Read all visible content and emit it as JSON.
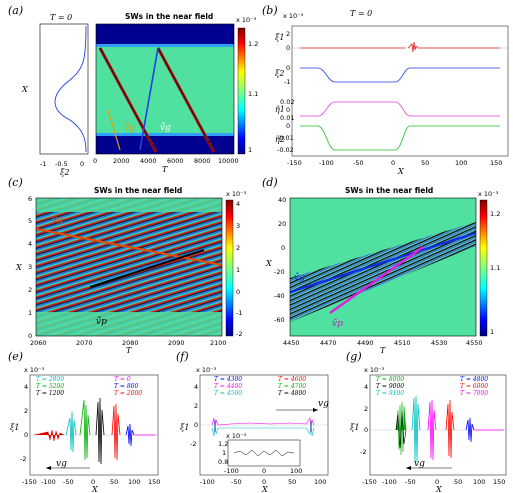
{
  "panels": {
    "a": {
      "label": "(a)",
      "title": "SWs in the near field",
      "T_label": "T = 0",
      "xlabel": "T",
      "ylabel": "X",
      "xi_label": "ξ2",
      "x_ticks": [
        "0",
        "2000",
        "4000",
        "6000",
        "8000",
        "10000"
      ],
      "y_ticks": [],
      "xi_ticks": [
        "-1",
        "-0.5",
        "0"
      ],
      "cb_exp": "x 10⁻³",
      "cb_ticks": [
        "1.2",
        "1.1",
        "1"
      ],
      "ann_vg": "ṽg",
      "ann_vg2": "ṽg"
    },
    "b": {
      "label": "(b)",
      "T_label": "T = 0",
      "exp": "x 10⁻³",
      "xlabel": "X",
      "rows": [
        {
          "ylabel": "ξ1",
          "ticks": [
            "2",
            "0"
          ],
          "color": "#e02020"
        },
        {
          "ylabel": "ξ2",
          "ticks": [
            "0",
            "-1"
          ],
          "color": "#2040e0"
        },
        {
          "ylabel": "η̃1",
          "ticks": [
            "0.02",
            "0",
            "0.01"
          ],
          "color": "#e040e0"
        },
        {
          "ylabel": "η̃2",
          "ticks": [
            "0",
            "-0.01",
            "-0.02"
          ],
          "color": "#20c020"
        }
      ],
      "x_ticks": [
        "-150",
        "-100",
        "-50",
        "0",
        "50",
        "100",
        "150"
      ]
    },
    "c": {
      "label": "(c)",
      "title": "SWs in the near field",
      "xlabel": "T",
      "ylabel": "X",
      "x_ticks": [
        "2060",
        "2070",
        "2080",
        "2090",
        "2100"
      ],
      "y_ticks": [
        "0",
        "1",
        "2",
        "3",
        "4",
        "5",
        "6"
      ],
      "cb_exp": "x 10⁻³",
      "cb_ticks": [
        "4",
        "3",
        "2",
        "1",
        "0",
        "-1",
        "-2"
      ],
      "ann_vg": "vg",
      "ann_vp": "ṽp"
    },
    "d": {
      "label": "(d)",
      "title": "SWs in the near field",
      "xlabel": "T",
      "ylabel": "X",
      "x_ticks": [
        "4450",
        "4470",
        "4490",
        "4510",
        "4530",
        "4550"
      ],
      "y_ticks": [
        "-60",
        "-40",
        "-20",
        "0",
        "20",
        "40"
      ],
      "cb_exp": "x 10⁻³",
      "cb_ticks": [
        "1.2",
        "1.1",
        "1"
      ],
      "ann_vg": "ṽg",
      "ann_vp": "ṽp"
    },
    "e": {
      "label": "(e)",
      "exp": "x 10⁻³",
      "xlabel": "X",
      "ylabel": "ξ1",
      "y_ticks": [
        "4",
        "2",
        "0",
        "-2"
      ],
      "x_ticks": [
        "-150",
        "-100",
        "-50",
        "0",
        "50",
        "100",
        "150"
      ],
      "legend": [
        {
          "text": "T = 2800",
          "color": "#00c0c0"
        },
        {
          "text": "T = 0",
          "color": "#ff00ff"
        },
        {
          "text": "T = 5200",
          "color": "#00b000"
        },
        {
          "text": "T = 800",
          "color": "#0000ff"
        },
        {
          "text": "T = 1200",
          "color": "#000000"
        },
        {
          "text": "T = 2000",
          "color": "#ff0000"
        }
      ],
      "ann": "vg"
    },
    "f": {
      "label": "(f)",
      "exp": "x 10⁻³",
      "xlabel": "X",
      "ylabel": "ξ1",
      "y_ticks": [
        "4",
        "2",
        "0",
        "-2"
      ],
      "x_ticks": [
        "-100",
        "-50",
        "0",
        "50",
        "100"
      ],
      "legend": [
        {
          "text": "T = 4300",
          "color": "#0000ff"
        },
        {
          "text": "T = 4600",
          "color": "#ff0000"
        },
        {
          "text": "T = 4400",
          "color": "#ff00ff"
        },
        {
          "text": "T = 4700",
          "color": "#00b000"
        },
        {
          "text": "T = 4500",
          "color": "#00c0c0"
        },
        {
          "text": "T = 4800",
          "color": "#000000"
        }
      ],
      "inset_exp": "x 10⁻³",
      "inset_ticks": [
        "1.2",
        "1",
        "0.8"
      ],
      "inset_xticks": [
        "-100",
        "0",
        "100"
      ],
      "ann": "vg"
    },
    "g": {
      "label": "(g)",
      "exp": "x 10⁻³",
      "xlabel": "X",
      "ylabel": "ξ1",
      "y_ticks": [
        "4",
        "2",
        "0",
        "-2"
      ],
      "x_ticks": [
        "-150",
        "-100",
        "-50",
        "0",
        "50",
        "100",
        "150"
      ],
      "legend": [
        {
          "text": "T = 8000",
          "color": "#00b000"
        },
        {
          "text": "T = 4800",
          "color": "#0000ff"
        },
        {
          "text": "T = 9000",
          "color": "#000000"
        },
        {
          "text": "T = 6000",
          "color": "#ff0000"
        },
        {
          "text": "T = 9100",
          "color": "#00c0c0"
        },
        {
          "text": "T = 7000",
          "color": "#ff00ff"
        }
      ],
      "ann": "vg"
    }
  }
}
